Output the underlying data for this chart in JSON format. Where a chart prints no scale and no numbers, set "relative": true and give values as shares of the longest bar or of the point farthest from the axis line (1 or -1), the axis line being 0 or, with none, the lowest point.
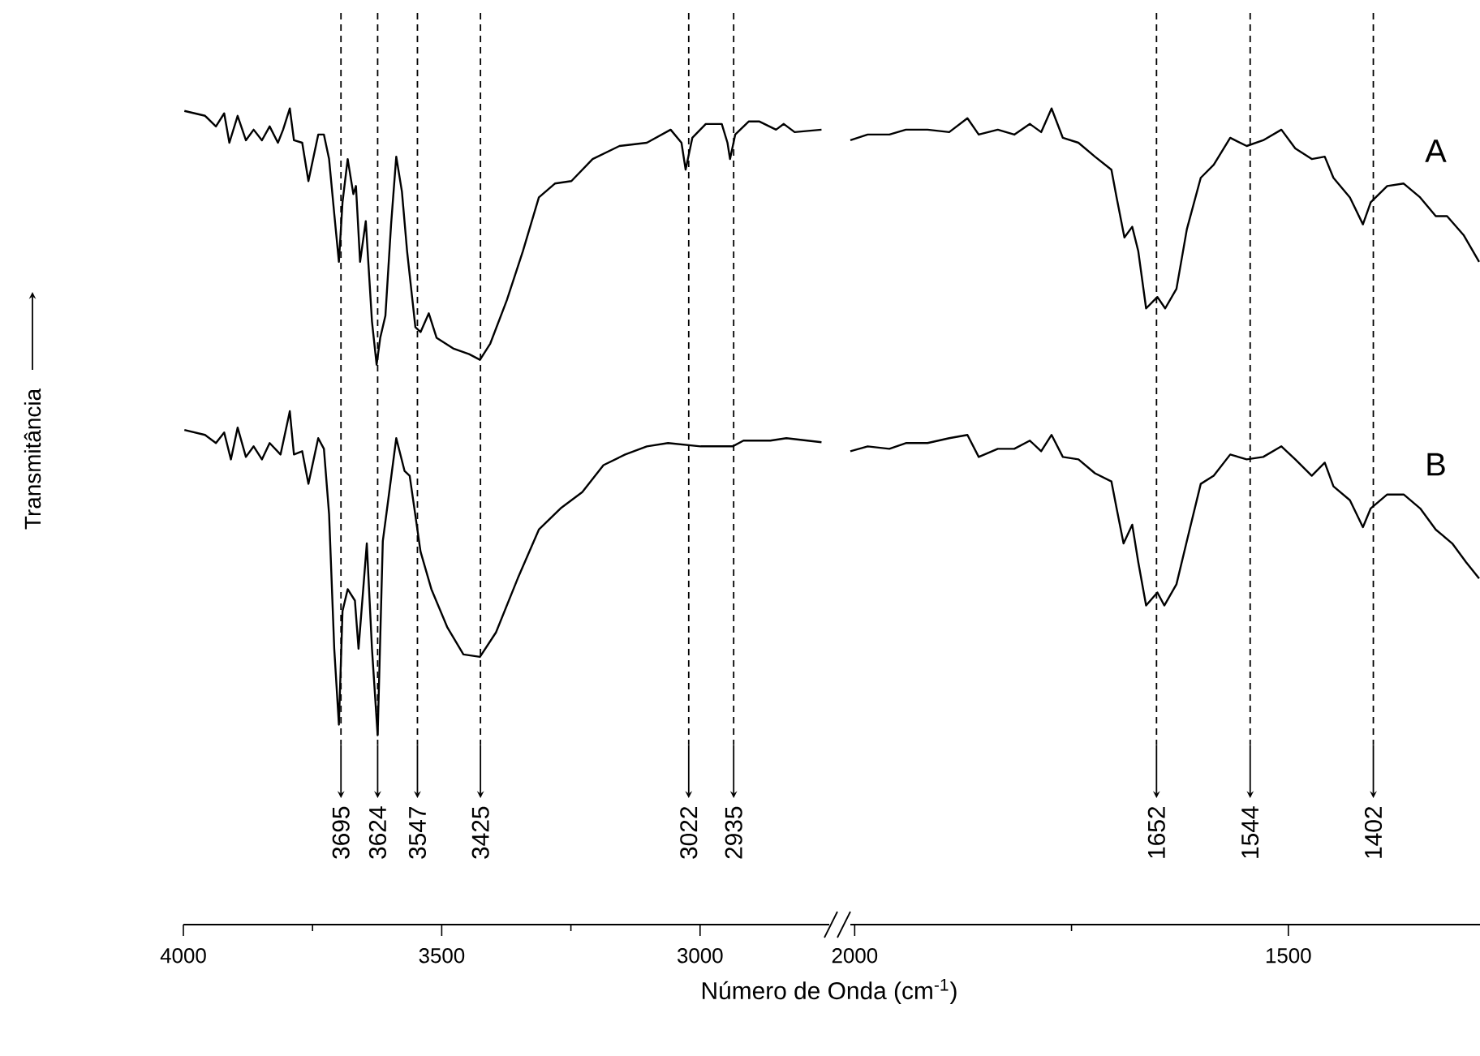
{
  "chart_data": [
    {
      "type": "line",
      "relative": true,
      "ylabel": "Transmitância",
      "xlabel": "Número de Onda (cm$^{-1}$)",
      "xlim": [
        4000,
        2750
      ],
      "xticks": [
        4000,
        {
          "value": 3750,
          "label": null
        },
        3500,
        {
          "value": 3250,
          "label": null
        },
        3000
      ],
      "series": [
        {
          "color": "#000000",
          "x": [
            3998,
            3958,
            3937,
            3921,
            3911,
            3895,
            3879,
            3864,
            3848,
            3833,
            3817,
            3807,
            3794,
            3786,
            3770,
            3758,
            3739,
            3728,
            3718,
            3708,
            3699,
            3692,
            3682,
            3671,
            3666,
            3658,
            3647,
            3635,
            3626,
            3619,
            3609,
            3598,
            3588,
            3577,
            3567,
            3551,
            3541,
            3525,
            3510,
            3478,
            3447,
            3426,
            3406,
            3374,
            3343,
            3312,
            3281,
            3249,
            3208,
            3156,
            3103,
            3057,
            3036,
            3028,
            3015,
            2989,
            2958,
            2947,
            2942,
            2932,
            2906,
            2885,
            2853,
            2838,
            2817,
            2765
          ],
          "values": [
            0.997,
            0.991,
            0.978,
            0.994,
            0.958,
            0.991,
            0.961,
            0.974,
            0.961,
            0.978,
            0.958,
            0.974,
            1.0,
            0.961,
            0.958,
            0.911,
            0.968,
            0.968,
            0.938,
            0.871,
            0.812,
            0.885,
            0.938,
            0.895,
            0.905,
            0.812,
            0.862,
            0.739,
            0.686,
            0.719,
            0.746,
            0.858,
            0.941,
            0.898,
            0.825,
            0.732,
            0.726,
            0.749,
            0.719,
            0.706,
            0.699,
            0.692,
            0.712,
            0.765,
            0.825,
            0.891,
            0.908,
            0.911,
            0.938,
            0.954,
            0.958,
            0.974,
            0.958,
            0.925,
            0.964,
            0.981,
            0.981,
            0.958,
            0.938,
            0.968,
            0.984,
            0.984,
            0.974,
            0.981,
            0.971,
            0.974
          ]
        },
        {
          "color": "#000000",
          "x": [
            3998,
            3958,
            3937,
            3921,
            3908,
            3895,
            3879,
            3864,
            3848,
            3833,
            3812,
            3794,
            3786,
            3770,
            3758,
            3739,
            3728,
            3718,
            3708,
            3699,
            3692,
            3682,
            3668,
            3661,
            3645,
            3635,
            3624,
            3614,
            3603,
            3588,
            3572,
            3562,
            3541,
            3520,
            3489,
            3458,
            3426,
            3395,
            3353,
            3312,
            3270,
            3228,
            3187,
            3145,
            3103,
            3062,
            2999,
            2937,
            2916,
            2864,
            2833,
            2765
          ],
          "values": [
            0.606,
            0.6,
            0.59,
            0.603,
            0.57,
            0.609,
            0.573,
            0.586,
            0.57,
            0.59,
            0.576,
            0.629,
            0.576,
            0.58,
            0.54,
            0.596,
            0.583,
            0.503,
            0.338,
            0.245,
            0.384,
            0.411,
            0.397,
            0.338,
            0.467,
            0.338,
            0.232,
            0.47,
            0.523,
            0.596,
            0.556,
            0.55,
            0.457,
            0.411,
            0.364,
            0.331,
            0.328,
            0.358,
            0.424,
            0.484,
            0.51,
            0.53,
            0.563,
            0.576,
            0.586,
            0.59,
            0.586,
            0.586,
            0.593,
            0.593,
            0.596,
            0.591
          ]
        }
      ],
      "ref_lines": [
        {
          "axis": "x",
          "value": 3695,
          "label": "3695",
          "color": "#000000",
          "line_style": "dashed"
        },
        {
          "axis": "x",
          "value": 3624,
          "label": "3624",
          "color": "#000000",
          "line_style": "dashed"
        },
        {
          "axis": "x",
          "value": 3547,
          "label": "3547",
          "color": "#000000",
          "line_style": "dashed"
        },
        {
          "axis": "x",
          "value": 3425,
          "label": "3425",
          "color": "#000000",
          "line_style": "dashed"
        },
        {
          "axis": "x",
          "value": 3022,
          "label": "3022",
          "color": "#000000",
          "line_style": "dashed"
        },
        {
          "axis": "x",
          "value": 2935,
          "label": "2935",
          "color": "#000000",
          "line_style": "dashed"
        }
      ]
    },
    {
      "type": "line",
      "relative": true,
      "xlim": [
        2005,
        1279
      ],
      "xticks": [
        2000,
        {
          "value": 1750,
          "label": null
        },
        1500
      ],
      "series": [
        {
          "name": "A",
          "color": "#000000",
          "x": [
            2005,
            1985,
            1960,
            1941,
            1916,
            1891,
            1870,
            1857,
            1835,
            1816,
            1798,
            1785,
            1773,
            1760,
            1742,
            1723,
            1704,
            1698,
            1689,
            1680,
            1673,
            1664,
            1651,
            1642,
            1629,
            1617,
            1601,
            1586,
            1567,
            1548,
            1529,
            1508,
            1492,
            1473,
            1458,
            1448,
            1429,
            1414,
            1405,
            1386,
            1367,
            1348,
            1330,
            1317,
            1298,
            1280
          ],
          "values": [
            0.961,
            0.968,
            0.968,
            0.974,
            0.974,
            0.971,
            0.988,
            0.968,
            0.974,
            0.968,
            0.981,
            0.971,
            1.0,
            0.964,
            0.958,
            0.941,
            0.925,
            0.891,
            0.842,
            0.855,
            0.825,
            0.755,
            0.769,
            0.755,
            0.779,
            0.852,
            0.915,
            0.931,
            0.964,
            0.954,
            0.961,
            0.974,
            0.951,
            0.938,
            0.941,
            0.915,
            0.891,
            0.858,
            0.885,
            0.905,
            0.908,
            0.891,
            0.868,
            0.868,
            0.845,
            0.812
          ]
        },
        {
          "name": "B",
          "color": "#000000",
          "x": [
            2005,
            1985,
            1960,
            1941,
            1916,
            1891,
            1870,
            1857,
            1835,
            1816,
            1798,
            1785,
            1773,
            1760,
            1742,
            1723,
            1704,
            1698,
            1690,
            1680,
            1673,
            1664,
            1651,
            1643,
            1629,
            1617,
            1601,
            1586,
            1567,
            1548,
            1529,
            1508,
            1492,
            1473,
            1458,
            1448,
            1429,
            1414,
            1405,
            1386,
            1367,
            1348,
            1330,
            1311,
            1295,
            1280
          ],
          "values": [
            0.58,
            0.586,
            0.583,
            0.59,
            0.59,
            0.596,
            0.6,
            0.573,
            0.583,
            0.583,
            0.593,
            0.58,
            0.6,
            0.573,
            0.57,
            0.553,
            0.543,
            0.51,
            0.467,
            0.49,
            0.444,
            0.391,
            0.407,
            0.391,
            0.417,
            0.47,
            0.54,
            0.55,
            0.576,
            0.57,
            0.573,
            0.586,
            0.57,
            0.55,
            0.566,
            0.537,
            0.52,
            0.487,
            0.51,
            0.527,
            0.527,
            0.51,
            0.484,
            0.467,
            0.444,
            0.424
          ]
        }
      ],
      "ref_lines": [
        {
          "axis": "x",
          "value": 1652,
          "label": "1652",
          "color": "#000000",
          "line_style": "dashed"
        },
        {
          "axis": "x",
          "value": 1544,
          "label": "1544",
          "color": "#000000",
          "line_style": "dashed"
        },
        {
          "axis": "x",
          "value": 1402,
          "label": "1402",
          "color": "#000000",
          "line_style": "dashed"
        }
      ]
    }
  ]
}
